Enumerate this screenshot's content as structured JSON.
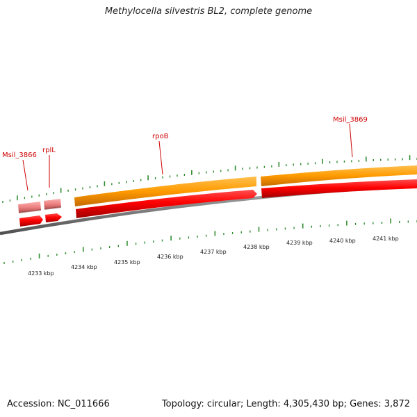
{
  "title": "Methylocella silvestris BL2, complete genome",
  "accession": "Accession: NC_011666",
  "summary": "Topology: circular; Length: 4,305,430 bp; Genes: 3,872",
  "kbp_labels": [
    "4233 kbp",
    "4234 kbp",
    "4235 kbp",
    "4236 kbp",
    "4237 kbp",
    "4238 kbp",
    "4239 kbp",
    "4240 kbp",
    "4241 kbp"
  ],
  "gene_labels": [
    "Msil_3866",
    "rplL",
    "rpoB",
    "Msil_3869"
  ],
  "colors": {
    "gene_label": "#cc0000",
    "tick": "#2e8b2e",
    "backbone": "#808080",
    "orange_feature": "#ff9900",
    "red_feature": "#ff0000",
    "pink_feature": "#f08080"
  }
}
